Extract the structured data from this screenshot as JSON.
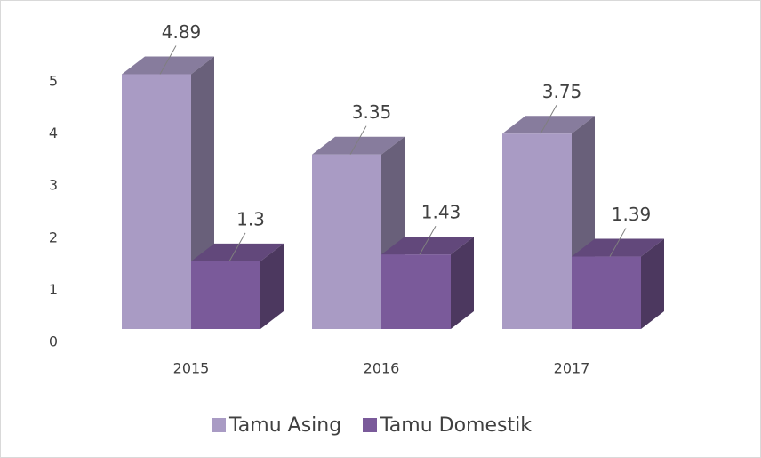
{
  "chart_data": {
    "type": "bar3d",
    "categories": [
      "2015",
      "2016",
      "2017"
    ],
    "series": [
      {
        "name": "Tamu Asing",
        "color": "#a99bc4",
        "values": [
          4.89,
          3.35,
          3.75
        ]
      },
      {
        "name": "Tamu Domestik",
        "color": "#7a5a9a",
        "values": [
          1.3,
          1.43,
          1.39
        ]
      }
    ],
    "ylim": [
      0,
      5
    ],
    "yticks": [
      0,
      1,
      2,
      3,
      4,
      5
    ],
    "legend": "bottom"
  }
}
